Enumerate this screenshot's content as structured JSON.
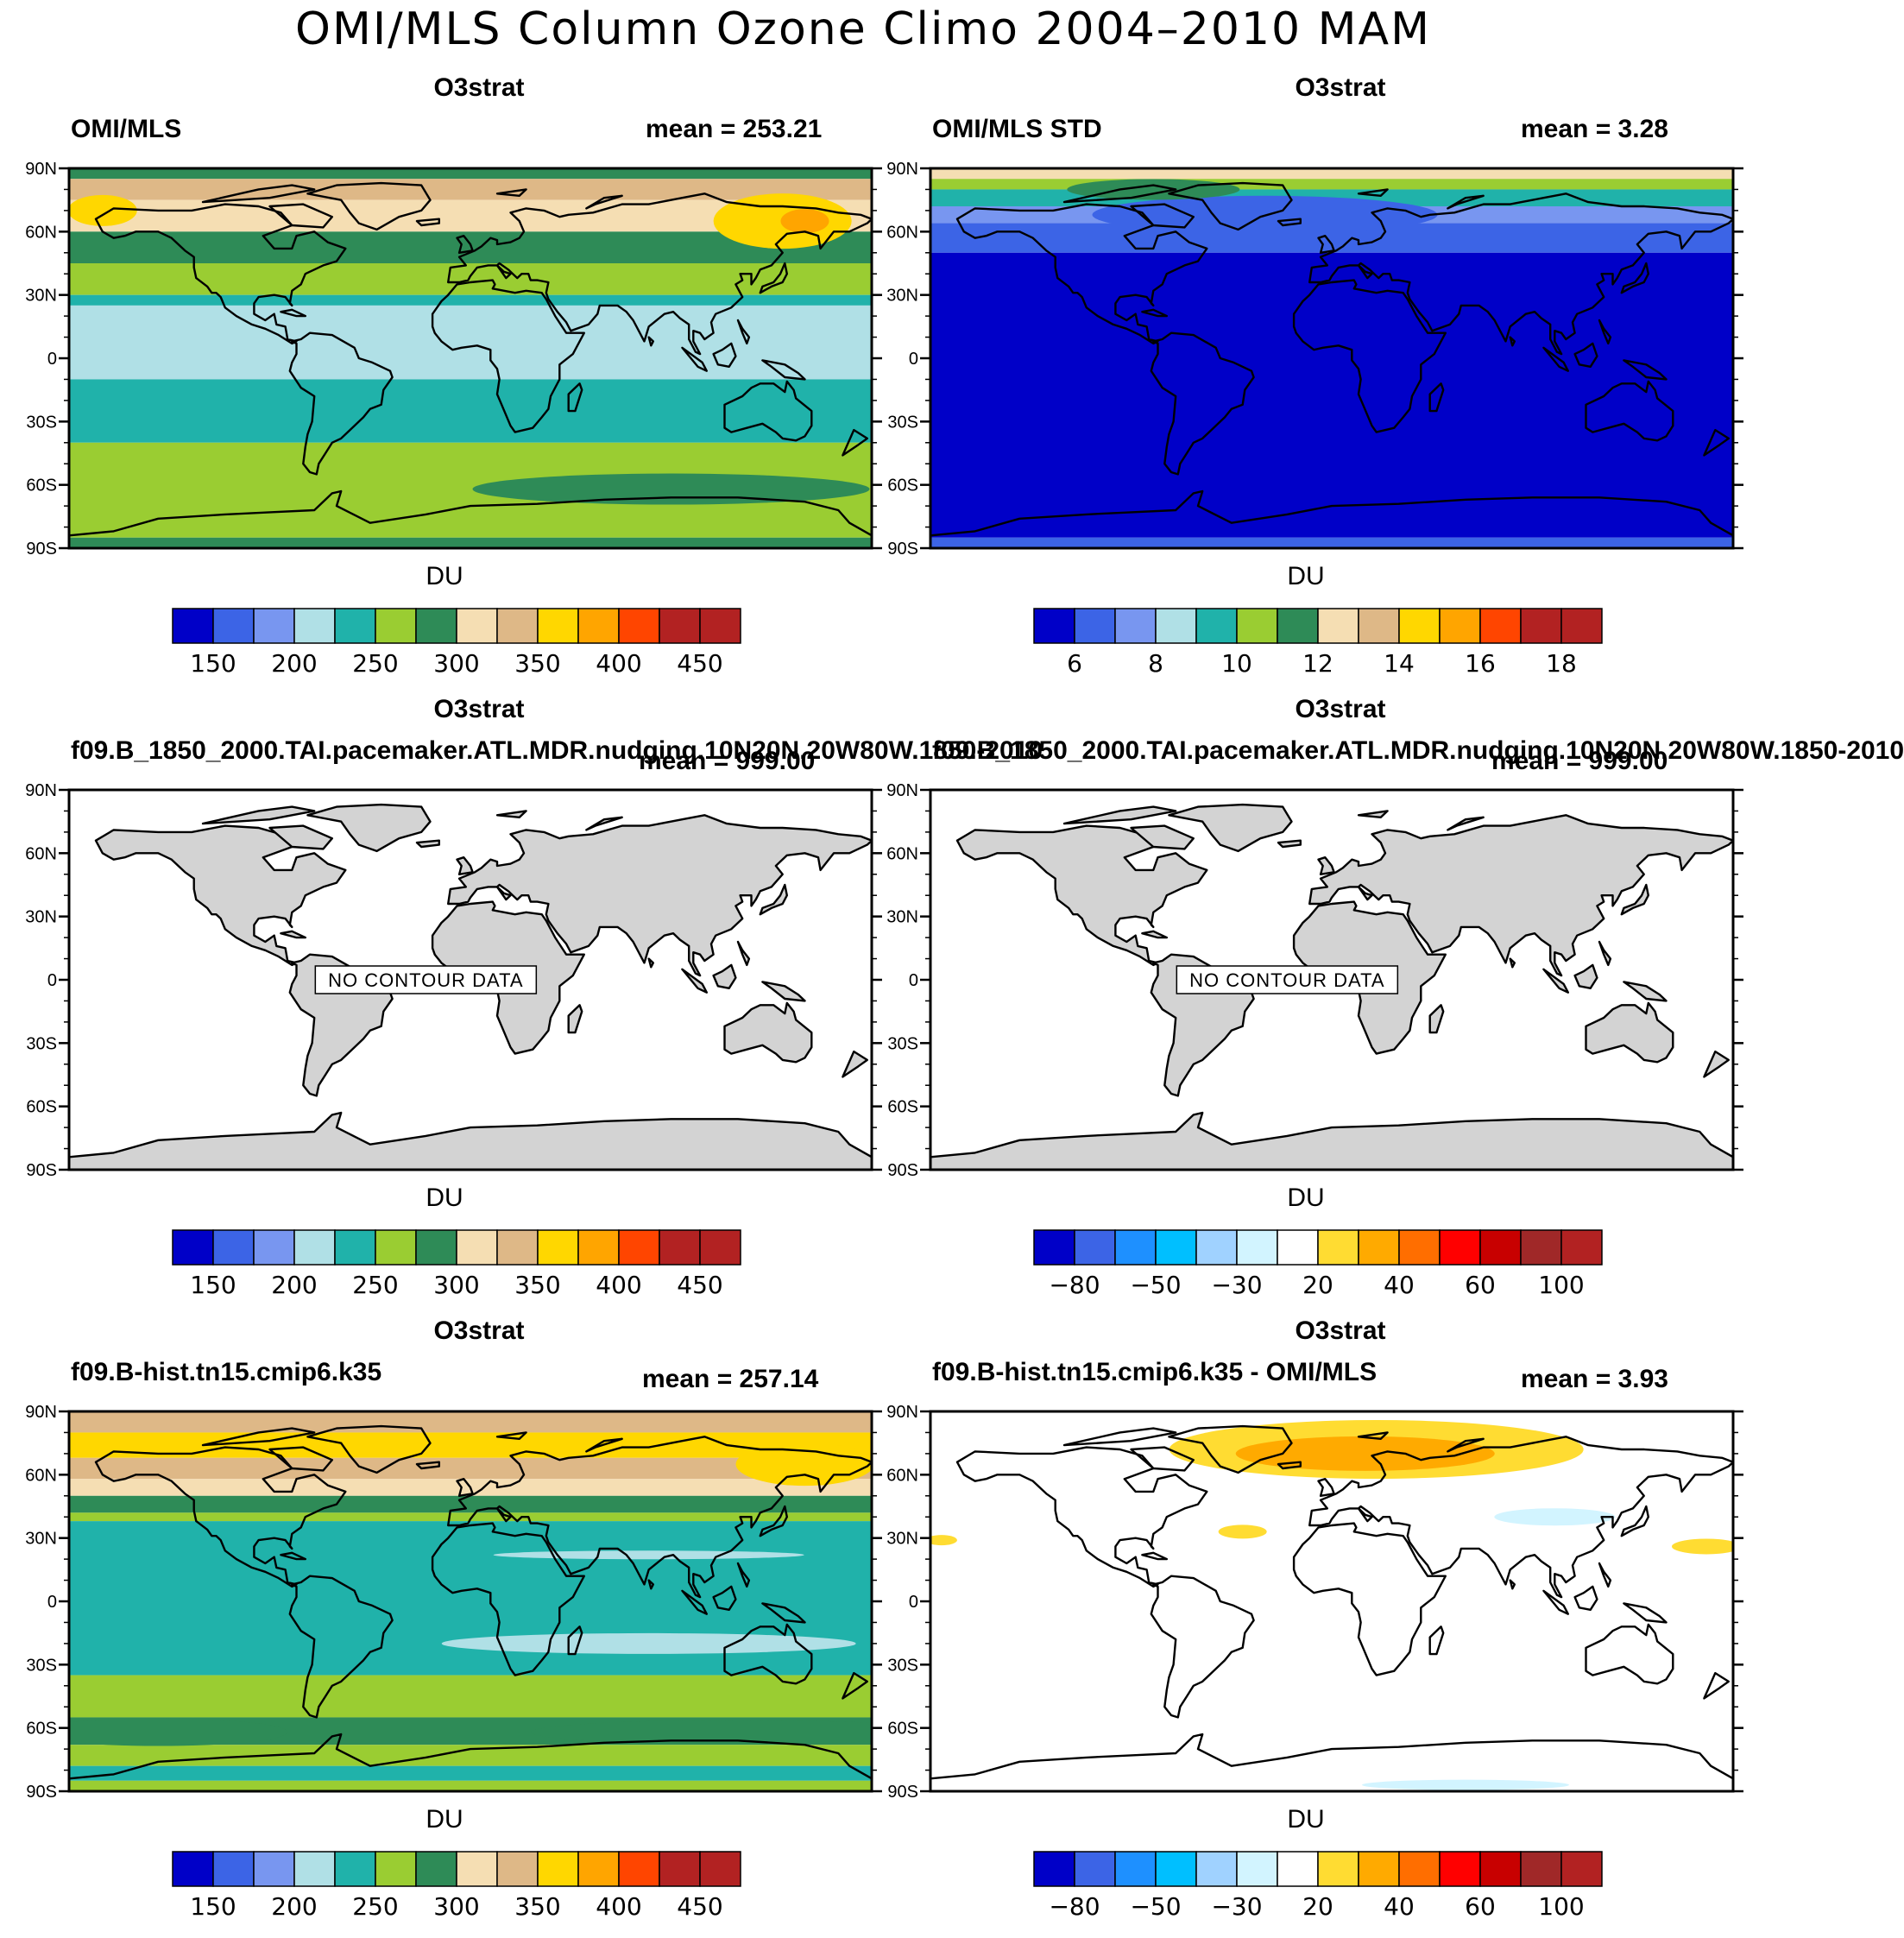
{
  "title": "OMI/MLS Column Ozone Climo 2004–2010 MAM",
  "colors": {
    "ozone": [
      "#0000c8",
      "#3c64e6",
      "#7896f0",
      "#b0e0e6",
      "#20b2aa",
      "#9acd32",
      "#2e8b57",
      "#f5deb3",
      "#deb887",
      "#ffd700",
      "#ffa500",
      "#ff4500",
      "#b22222",
      "#b22222"
    ],
    "std": [
      "#0000c8",
      "#3c64e6",
      "#7896f0",
      "#b0e0e6",
      "#20b2aa",
      "#9acd32",
      "#2e8b57",
      "#f5deb3",
      "#deb887",
      "#ffd700",
      "#ffa500",
      "#ff4500",
      "#b22222",
      "#b22222"
    ],
    "diff": [
      "#0000c8",
      "#3c64e6",
      "#1e90ff",
      "#00bfff",
      "#a0d2ff",
      "#d2f4ff",
      "#ffffff",
      "#ffdc32",
      "#ffaa00",
      "#ff6e00",
      "#ff0000",
      "#c80000",
      "#a02828",
      "#b22222"
    ],
    "land_gray": "#d3d3d3"
  },
  "chart_data": [
    {
      "type": "heatmap",
      "title": "O3strat",
      "left_string": "OMI/MLS",
      "mean_label": "mean = 253.21",
      "mean": 253.21,
      "units": "DU",
      "colorbar_labels": [
        "150",
        "200",
        "250",
        "300",
        "350",
        "400",
        "450"
      ],
      "palette": "ozone",
      "lat_labels": [
        "90N",
        "60N",
        "30N",
        "0",
        "30S",
        "60S",
        "90S"
      ],
      "bands": [
        {
          "lat_from": 90,
          "lat_to": 85,
          "value": "#2e8b57"
        },
        {
          "lat_from": 85,
          "lat_to": 75,
          "value": "#deb887"
        },
        {
          "lat_from": 75,
          "lat_to": 60,
          "value": "#f5deb3"
        },
        {
          "lat_from": 60,
          "lat_to": 45,
          "value": "#2e8b57"
        },
        {
          "lat_from": 45,
          "lat_to": 30,
          "value": "#9acd32"
        },
        {
          "lat_from": 30,
          "lat_to": 25,
          "value": "#20b2aa"
        },
        {
          "lat_from": 25,
          "lat_to": -10,
          "value": "#b0e0e6"
        },
        {
          "lat_from": -10,
          "lat_to": -40,
          "value": "#20b2aa"
        },
        {
          "lat_from": -40,
          "lat_to": -85,
          "value": "#9acd32"
        },
        {
          "lat_from": -85,
          "lat_to": -90,
          "value": "#2e8b57"
        }
      ]
    },
    {
      "type": "heatmap",
      "title": "O3strat",
      "left_string": "OMI/MLS STD",
      "mean_label": "mean =   3.28",
      "mean": 3.28,
      "units": "DU",
      "colorbar_labels": [
        "6",
        "8",
        "10",
        "12",
        "14",
        "16",
        "18"
      ],
      "palette": "std",
      "lat_labels": [
        "90N",
        "60N",
        "30N",
        "0",
        "30S",
        "60S",
        "90S"
      ],
      "bands": [
        {
          "lat_from": 90,
          "lat_to": 85,
          "value": "#f5deb3"
        },
        {
          "lat_from": 85,
          "lat_to": 80,
          "value": "#9acd32"
        },
        {
          "lat_from": 80,
          "lat_to": 72,
          "value": "#20b2aa"
        },
        {
          "lat_from": 72,
          "lat_to": 64,
          "value": "#7896f0"
        },
        {
          "lat_from": 64,
          "lat_to": 50,
          "value": "#3c64e6"
        },
        {
          "lat_from": 50,
          "lat_to": -85,
          "value": "#0000c8"
        },
        {
          "lat_from": -85,
          "lat_to": -90,
          "value": "#3c64e6"
        }
      ]
    },
    {
      "type": "heatmap",
      "title": "O3strat",
      "left_string": "f09.B_1850_2000.TAI.pacemaker.ATL.MDR.nudging.10N20N.20W80W.1850-2010",
      "mean_label": "mean = 999.00",
      "units": "DU",
      "no_data_text": "NO CONTOUR DATA",
      "colorbar_labels": [
        "150",
        "200",
        "250",
        "300",
        "350",
        "400",
        "450"
      ],
      "palette": "ozone",
      "lat_labels": [
        "90N",
        "60N",
        "30N",
        "0",
        "30S",
        "60S",
        "90S"
      ]
    },
    {
      "type": "heatmap",
      "title": "O3strat",
      "left_string": "f09.B_1850_2000.TAI.pacemaker.ATL.MDR.nudging.10N20N.20W80W.1850-2010",
      "mean_label": "mean = 999.00",
      "units": "DU",
      "no_data_text": "NO CONTOUR DATA",
      "colorbar_labels": [
        "−80",
        "−50",
        "−30",
        "20",
        "40",
        "60",
        "100"
      ],
      "palette": "diff",
      "lat_labels": [
        "90N",
        "60N",
        "30N",
        "0",
        "30S",
        "60S",
        "90S"
      ]
    },
    {
      "type": "heatmap",
      "title": "O3strat",
      "left_string": "f09.B-hist.tn15.cmip6.k35",
      "mean_label": "mean = 257.14",
      "mean": 257.14,
      "units": "DU",
      "colorbar_labels": [
        "150",
        "200",
        "250",
        "300",
        "350",
        "400",
        "450"
      ],
      "palette": "ozone",
      "lat_labels": [
        "90N",
        "60N",
        "30N",
        "0",
        "30S",
        "60S",
        "90S"
      ],
      "bands": [
        {
          "lat_from": 90,
          "lat_to": 80,
          "value": "#deb887"
        },
        {
          "lat_from": 80,
          "lat_to": 68,
          "value": "#ffd700"
        },
        {
          "lat_from": 68,
          "lat_to": 58,
          "value": "#deb887"
        },
        {
          "lat_from": 58,
          "lat_to": 50,
          "value": "#f5deb3"
        },
        {
          "lat_from": 50,
          "lat_to": 42,
          "value": "#2e8b57"
        },
        {
          "lat_from": 42,
          "lat_to": 38,
          "value": "#9acd32"
        },
        {
          "lat_from": 38,
          "lat_to": -35,
          "value": "#20b2aa"
        },
        {
          "lat_from": -35,
          "lat_to": -55,
          "value": "#9acd32"
        },
        {
          "lat_from": -55,
          "lat_to": -68,
          "value": "#2e8b57"
        },
        {
          "lat_from": -68,
          "lat_to": -78,
          "value": "#9acd32"
        },
        {
          "lat_from": -78,
          "lat_to": -85,
          "value": "#20b2aa"
        },
        {
          "lat_from": -85,
          "lat_to": -90,
          "value": "#9acd32"
        }
      ]
    },
    {
      "type": "heatmap",
      "title": "O3strat",
      "left_string": "f09.B-hist.tn15.cmip6.k35 - OMI/MLS",
      "mean_label": "mean =   3.93",
      "mean": 3.93,
      "units": "DU",
      "colorbar_labels": [
        "−80",
        "−50",
        "−30",
        "20",
        "40",
        "60",
        "100"
      ],
      "palette": "diff",
      "lat_labels": [
        "90N",
        "60N",
        "30N",
        "0",
        "30S",
        "60S",
        "90S"
      ],
      "bands": []
    }
  ]
}
